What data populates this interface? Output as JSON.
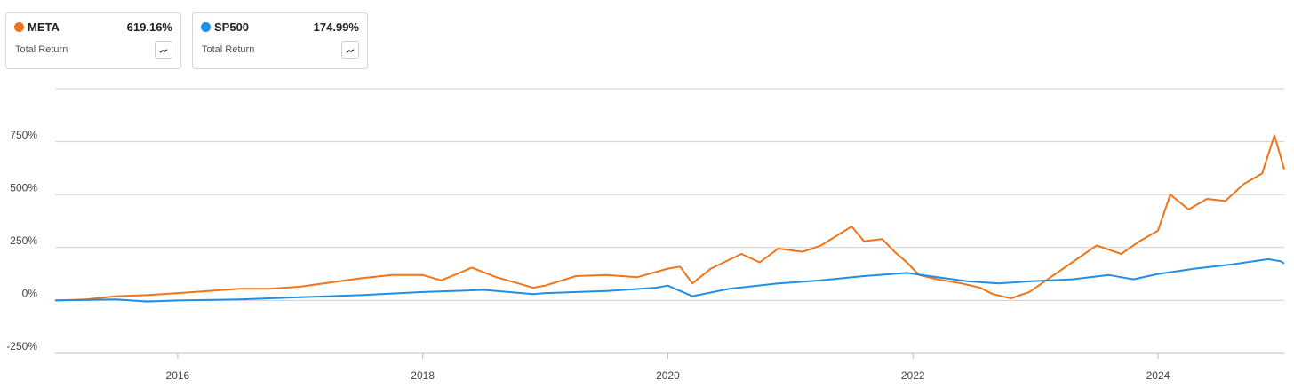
{
  "chart_data": {
    "type": "line",
    "xlim": [
      2015,
      2025.03
    ],
    "xticks": [
      2016,
      2018,
      2020,
      2022,
      2024
    ],
    "ylim": [
      -250,
      1000
    ],
    "yticks": [
      {
        "value": -250,
        "label": "-250%"
      },
      {
        "value": 0,
        "label": "0%"
      },
      {
        "value": 250,
        "label": "250%"
      },
      {
        "value": 500,
        "label": "500%"
      },
      {
        "value": 750,
        "label": "750%"
      }
    ],
    "grid": true,
    "series": [
      {
        "name": "META",
        "color": "#f07518",
        "total_return": "619.16%",
        "metric": "Total Return",
        "x": [
          2015,
          2015.25,
          2015.5,
          2015.75,
          2016,
          2016.25,
          2016.5,
          2016.75,
          2017,
          2017.25,
          2017.5,
          2017.75,
          2018,
          2018.15,
          2018.3,
          2018.4,
          2018.6,
          2018.75,
          2018.9,
          2019,
          2019.25,
          2019.5,
          2019.75,
          2020,
          2020.1,
          2020.2,
          2020.35,
          2020.6,
          2020.75,
          2020.9,
          2021.1,
          2021.25,
          2021.5,
          2021.6,
          2021.75,
          2021.85,
          2021.95,
          2022.05,
          2022.2,
          2022.4,
          2022.55,
          2022.65,
          2022.8,
          2022.95,
          2023.1,
          2023.3,
          2023.5,
          2023.7,
          2023.85,
          2024,
          2024.1,
          2024.25,
          2024.4,
          2024.55,
          2024.7,
          2024.85,
          2024.95,
          2025,
          2025.03
        ],
        "values": [
          0,
          5,
          20,
          25,
          35,
          45,
          55,
          55,
          65,
          85,
          105,
          120,
          120,
          95,
          130,
          155,
          110,
          85,
          60,
          70,
          115,
          120,
          110,
          150,
          160,
          80,
          150,
          220,
          180,
          245,
          230,
          260,
          350,
          280,
          290,
          230,
          180,
          120,
          100,
          80,
          60,
          30,
          10,
          40,
          100,
          180,
          260,
          220,
          280,
          330,
          500,
          430,
          480,
          470,
          550,
          600,
          780,
          680,
          619.16
        ]
      },
      {
        "name": "SP500",
        "color": "#1e8fe6",
        "total_return": "174.99%",
        "metric": "Total Return",
        "x": [
          2015,
          2015.5,
          2015.75,
          2016,
          2016.5,
          2016.75,
          2017,
          2017.5,
          2018,
          2018.25,
          2018.5,
          2018.9,
          2019,
          2019.5,
          2019.9,
          2020,
          2020.2,
          2020.5,
          2020.9,
          2021.25,
          2021.6,
          2021.95,
          2022.2,
          2022.45,
          2022.7,
          2022.95,
          2023.3,
          2023.6,
          2023.8,
          2024,
          2024.3,
          2024.6,
          2024.9,
          2025,
          2025.03
        ],
        "values": [
          0,
          5,
          -5,
          0,
          5,
          10,
          15,
          25,
          40,
          45,
          50,
          30,
          35,
          45,
          60,
          70,
          20,
          55,
          80,
          95,
          115,
          130,
          110,
          90,
          80,
          90,
          100,
          120,
          100,
          125,
          150,
          170,
          195,
          185,
          174.99
        ]
      }
    ]
  }
}
